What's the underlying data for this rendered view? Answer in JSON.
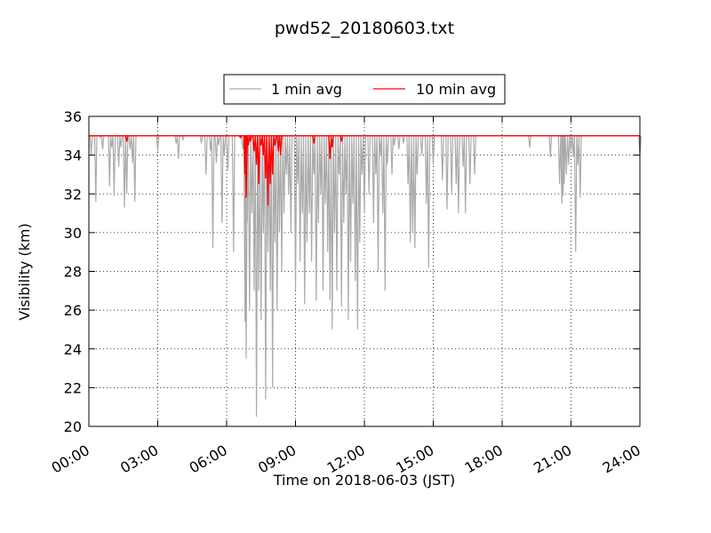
{
  "chart_data": {
    "type": "line",
    "title": "pwd52_20180603.txt",
    "xlabel": "Time on 2018-06-03 (JST)",
    "ylabel": "Visibility (km)",
    "xlim": [
      0,
      24
    ],
    "ylim": [
      20,
      36
    ],
    "x_ticks": [
      "00:00",
      "03:00",
      "06:00",
      "09:00",
      "12:00",
      "15:00",
      "18:00",
      "21:00",
      "24:00"
    ],
    "y_ticks": [
      "20",
      "22",
      "24",
      "26",
      "28",
      "30",
      "32",
      "34",
      "36"
    ],
    "grid": true,
    "legend_position": "top-center, above plot",
    "baseline": 35,
    "series": [
      {
        "name": "1 min avg",
        "color": "#aaaaaa",
        "dips": [
          [
            0.1,
            34.0
          ],
          [
            0.3,
            31.6
          ],
          [
            0.5,
            34.9
          ],
          [
            0.6,
            34.3
          ],
          [
            0.9,
            32.4
          ],
          [
            1.0,
            34.4
          ],
          [
            1.1,
            31.9
          ],
          [
            1.3,
            33.4
          ],
          [
            1.4,
            34.4
          ],
          [
            1.55,
            31.3
          ],
          [
            1.65,
            32.0
          ],
          [
            1.8,
            34.3
          ],
          [
            1.9,
            33.6
          ],
          [
            2.0,
            31.6
          ],
          [
            3.0,
            34.2
          ],
          [
            3.8,
            34.6
          ],
          [
            3.9,
            33.8
          ],
          [
            4.1,
            34.8
          ],
          [
            4.9,
            34.6
          ],
          [
            5.1,
            33.0
          ],
          [
            5.3,
            34.2
          ],
          [
            5.4,
            29.2
          ],
          [
            5.55,
            33.6
          ],
          [
            5.65,
            34.5
          ],
          [
            5.8,
            30.5
          ],
          [
            5.9,
            34.0
          ],
          [
            6.05,
            33.2
          ],
          [
            6.3,
            29.0
          ],
          [
            6.7,
            34.3
          ],
          [
            6.8,
            25.4
          ],
          [
            6.85,
            23.5
          ],
          [
            6.9,
            30.5
          ],
          [
            7.0,
            26.0
          ],
          [
            7.1,
            31.0
          ],
          [
            7.2,
            27.0
          ],
          [
            7.3,
            20.5
          ],
          [
            7.4,
            27.0
          ],
          [
            7.5,
            25.5
          ],
          [
            7.6,
            30.0
          ],
          [
            7.7,
            21.4
          ],
          [
            7.8,
            29.0
          ],
          [
            7.9,
            27.0
          ],
          [
            8.0,
            22.0
          ],
          [
            8.1,
            29.5
          ],
          [
            8.2,
            26.0
          ],
          [
            8.3,
            30.0
          ],
          [
            8.4,
            28.0
          ],
          [
            8.5,
            31.0
          ],
          [
            8.6,
            33.0
          ],
          [
            8.7,
            32.0
          ],
          [
            8.8,
            30.0
          ],
          [
            9.0,
            27.0
          ],
          [
            9.1,
            32.5
          ],
          [
            9.2,
            28.5
          ],
          [
            9.3,
            31.0
          ],
          [
            9.4,
            26.3
          ],
          [
            9.5,
            29.5
          ],
          [
            9.6,
            31.0
          ],
          [
            9.7,
            28.5
          ],
          [
            9.8,
            33.0
          ],
          [
            9.9,
            26.5
          ],
          [
            10.0,
            30.5
          ],
          [
            10.1,
            32.0
          ],
          [
            10.2,
            27.0
          ],
          [
            10.3,
            31.5
          ],
          [
            10.4,
            29.0
          ],
          [
            10.5,
            26.5
          ],
          [
            10.6,
            25.0
          ],
          [
            10.7,
            30.0
          ],
          [
            10.8,
            27.0
          ],
          [
            10.9,
            33.0
          ],
          [
            11.0,
            26.2
          ],
          [
            11.1,
            30.5
          ],
          [
            11.2,
            32.0
          ],
          [
            11.3,
            25.5
          ],
          [
            11.4,
            28.5
          ],
          [
            11.5,
            31.5
          ],
          [
            11.6,
            27.5
          ],
          [
            11.7,
            25.0
          ],
          [
            11.8,
            29.5
          ],
          [
            11.9,
            33.0
          ],
          [
            12.0,
            31.0
          ],
          [
            12.2,
            32.0
          ],
          [
            12.4,
            30.5
          ],
          [
            12.5,
            33.0
          ],
          [
            12.6,
            28.0
          ],
          [
            12.7,
            34.0
          ],
          [
            12.8,
            31.0
          ],
          [
            12.9,
            27.0
          ],
          [
            13.0,
            33.5
          ],
          [
            13.2,
            33.0
          ],
          [
            13.3,
            34.5
          ],
          [
            13.5,
            34.3
          ],
          [
            13.7,
            34.6
          ],
          [
            13.9,
            32.5
          ],
          [
            14.0,
            29.5
          ],
          [
            14.1,
            30.0
          ],
          [
            14.2,
            29.2
          ],
          [
            14.3,
            33.0
          ],
          [
            14.5,
            34.0
          ],
          [
            14.7,
            31.5
          ],
          [
            14.8,
            28.2
          ],
          [
            15.0,
            33.5
          ],
          [
            15.4,
            32.7
          ],
          [
            15.6,
            31.2
          ],
          [
            15.8,
            32.0
          ],
          [
            16.0,
            32.5
          ],
          [
            16.1,
            31.0
          ],
          [
            16.3,
            33.4
          ],
          [
            16.4,
            31.0
          ],
          [
            16.6,
            32.5
          ],
          [
            16.8,
            33.0
          ],
          [
            19.2,
            34.4
          ],
          [
            20.1,
            33.9
          ],
          [
            20.5,
            32.5
          ],
          [
            20.6,
            31.5
          ],
          [
            20.65,
            31.9
          ],
          [
            20.7,
            32.5
          ],
          [
            20.8,
            33.0
          ],
          [
            20.9,
            33.5
          ],
          [
            21.0,
            34.2
          ],
          [
            21.1,
            33.9
          ],
          [
            21.2,
            29.0
          ],
          [
            21.3,
            33.5
          ],
          [
            21.4,
            31.8
          ],
          [
            24.0,
            34.0
          ]
        ]
      },
      {
        "name": "10 min avg",
        "color": "#ff0000",
        "dips": [
          [
            1.65,
            34.7
          ],
          [
            6.6,
            34.9
          ],
          [
            6.8,
            33.0
          ],
          [
            6.85,
            31.8
          ],
          [
            6.95,
            34.5
          ],
          [
            7.05,
            34.7
          ],
          [
            7.2,
            34.2
          ],
          [
            7.3,
            33.5
          ],
          [
            7.4,
            32.5
          ],
          [
            7.5,
            34.5
          ],
          [
            7.6,
            34.0
          ],
          [
            7.7,
            32.8
          ],
          [
            7.8,
            31.4
          ],
          [
            7.9,
            32.5
          ],
          [
            8.0,
            33.0
          ],
          [
            8.1,
            34.5
          ],
          [
            8.25,
            34.2
          ],
          [
            8.35,
            34.0
          ],
          [
            9.8,
            34.6
          ],
          [
            10.5,
            33.8
          ],
          [
            10.6,
            34.4
          ],
          [
            11.0,
            34.7
          ]
        ]
      }
    ]
  }
}
